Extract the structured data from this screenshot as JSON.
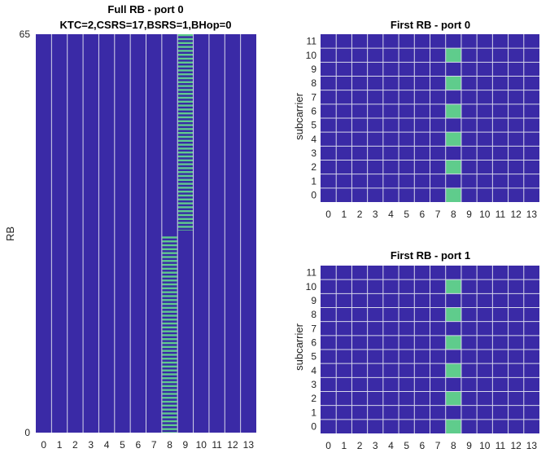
{
  "colors": {
    "background": "#3a2aa6",
    "srs": "#5fcc8c",
    "grid": "#d6d6ea",
    "text": "#222222"
  },
  "chart_data": [
    {
      "type": "heatmap",
      "title": "Full RB - port 0",
      "subtitle": "KTC=2,CSRS=17,BSRS=1,BHop=0",
      "xlabel": "",
      "ylabel": "RB",
      "x_ticks": [
        "0",
        "1",
        "2",
        "3",
        "4",
        "5",
        "6",
        "7",
        "8",
        "9",
        "10",
        "11",
        "12",
        "13"
      ],
      "y_tick_labels": [
        "0",
        "65"
      ],
      "ylim": [
        0,
        65
      ],
      "srs_regions": [
        {
          "symbol": 8,
          "rb_start": 0,
          "rb_end": 32
        },
        {
          "symbol": 9,
          "rb_start": 33,
          "rb_end": 65
        }
      ],
      "pattern": "alternating subcarriers (KTC=2)"
    },
    {
      "type": "heatmap",
      "title": "First RB - port 0",
      "xlabel": "",
      "ylabel": "subcarrier",
      "x_ticks": [
        "0",
        "1",
        "2",
        "3",
        "4",
        "5",
        "6",
        "7",
        "8",
        "9",
        "10",
        "11",
        "12",
        "13"
      ],
      "y_ticks": [
        "0",
        "1",
        "2",
        "3",
        "4",
        "5",
        "6",
        "7",
        "8",
        "9",
        "10",
        "11"
      ],
      "srs_cells": {
        "symbol": 8,
        "subcarriers": [
          0,
          2,
          4,
          6,
          8,
          10
        ]
      }
    },
    {
      "type": "heatmap",
      "title": "First RB - port 1",
      "xlabel": "",
      "ylabel": "subcarrier",
      "x_ticks": [
        "0",
        "1",
        "2",
        "3",
        "4",
        "5",
        "6",
        "7",
        "8",
        "9",
        "10",
        "11",
        "12",
        "13"
      ],
      "y_ticks": [
        "0",
        "1",
        "2",
        "3",
        "4",
        "5",
        "6",
        "7",
        "8",
        "9",
        "10",
        "11"
      ],
      "srs_cells": {
        "symbol": 8,
        "subcarriers": [
          0,
          2,
          4,
          6,
          8,
          10
        ]
      }
    }
  ]
}
